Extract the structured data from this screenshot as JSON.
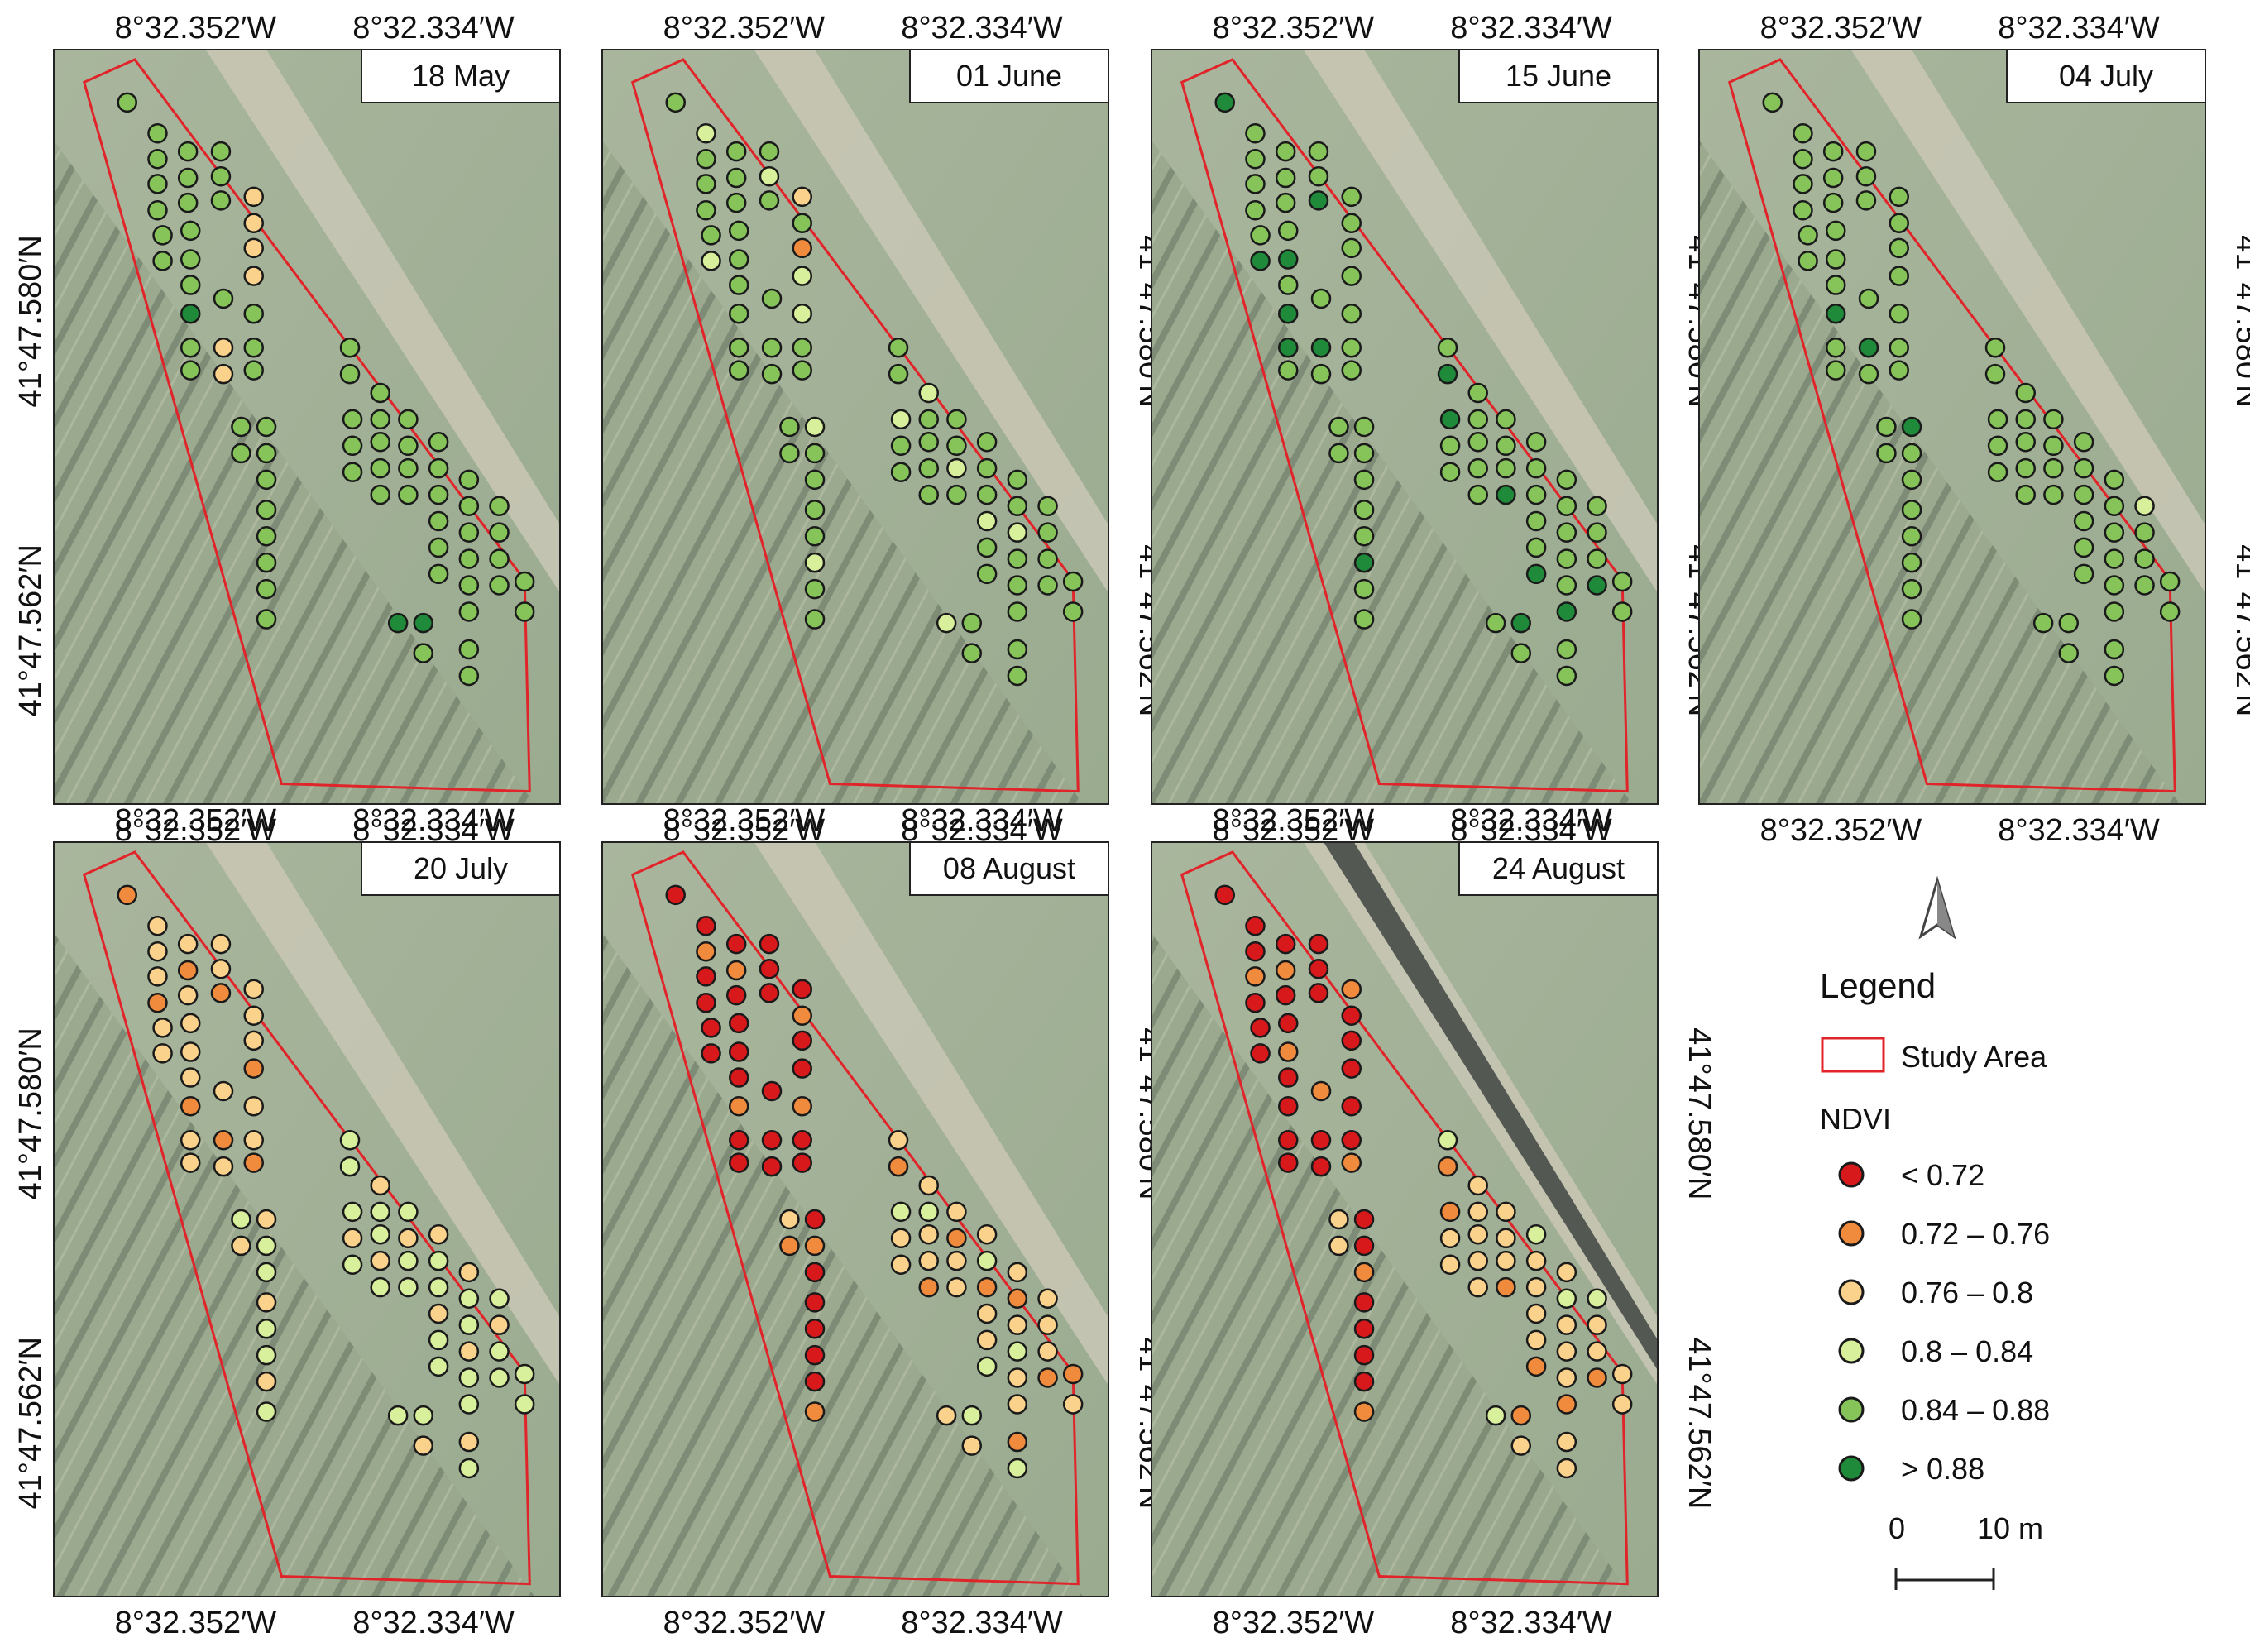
{
  "colors": {
    "study_area": "#e0242a",
    "class_lt_072": "#d7191c",
    "class_072_076": "#f08a3c",
    "class_076_080": "#fbd28c",
    "class_080_084": "#d8ef9c",
    "class_084_088": "#86c45a",
    "class_gt_088": "#1f8a3a"
  },
  "panels": [
    {
      "date": "18 May",
      "palette": "early-green",
      "variant": "a"
    },
    {
      "date": "01 June",
      "palette": "june1",
      "variant": "b"
    },
    {
      "date": "15 June",
      "palette": "june15",
      "variant": "c"
    },
    {
      "date": "04 July",
      "palette": "july4",
      "variant": "d"
    },
    {
      "date": "20 July",
      "palette": "july20",
      "variant": "e"
    },
    {
      "date": "08 August",
      "palette": "aug8",
      "variant": "f"
    },
    {
      "date": "24 August",
      "palette": "aug24",
      "variant": "g"
    }
  ],
  "coords": {
    "lon_left": "8°32.352′W",
    "lon_right": "8°32.334′W",
    "lat_upper": "41°47.580′N",
    "lat_lower": "41°47.562′N"
  },
  "north_arrow": "north-arrow-icon",
  "legend": {
    "title": "Legend",
    "study_area_label": "Study Area",
    "ndvi_title": "NDVI",
    "classes": [
      {
        "label": "< 0.72",
        "color_key": "class_lt_072"
      },
      {
        "label": "0.72 – 0.76",
        "color_key": "class_072_076"
      },
      {
        "label": "0.76 – 0.8",
        "color_key": "class_076_080"
      },
      {
        "label": "0.8 – 0.84",
        "color_key": "class_080_084"
      },
      {
        "label": "0.84 – 0.88",
        "color_key": "class_084_088"
      },
      {
        "label": "> 0.88",
        "color_key": "class_gt_088"
      }
    ]
  },
  "scale_bar": {
    "start": "0",
    "end": "10 m"
  }
}
